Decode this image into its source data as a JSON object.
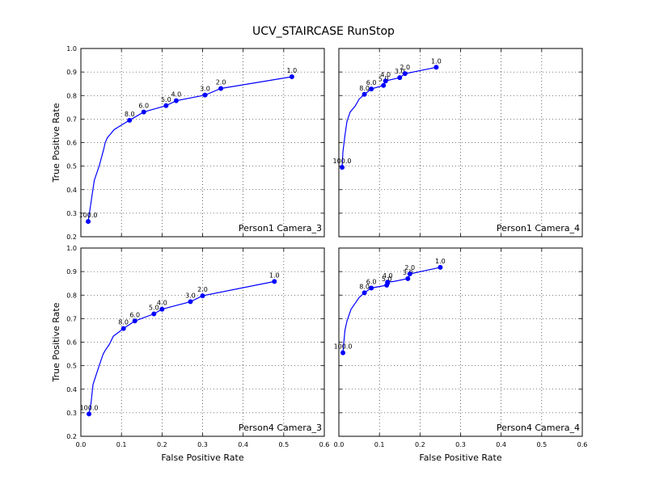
{
  "figure": {
    "title": "UCV_STAIRCASE RunStop",
    "xlabel": "False Positive Rate",
    "ylabel": "True Positive Rate",
    "line_color": "#0000ff"
  },
  "chart_data": [
    {
      "type": "line",
      "subplot": "Person1 Camera_3",
      "xlim": [
        0.0,
        0.6
      ],
      "ylim": [
        0.2,
        1.0
      ],
      "xticks": [
        "0.0",
        "0.1",
        "0.2",
        "0.3",
        "0.4",
        "0.5",
        "0.6"
      ],
      "yticks": [
        "0.2",
        "0.3",
        "0.4",
        "0.5",
        "0.6",
        "0.7",
        "0.8",
        "0.9",
        "1.0"
      ],
      "show_xtick_labels": false,
      "show_ytick_labels": true,
      "show_ylabel": true,
      "show_xlabel": false,
      "grid": true,
      "curve": [
        [
          0.018,
          0.265
        ],
        [
          0.022,
          0.31
        ],
        [
          0.028,
          0.38
        ],
        [
          0.033,
          0.44
        ],
        [
          0.045,
          0.5
        ],
        [
          0.056,
          0.57
        ],
        [
          0.06,
          0.6
        ],
        [
          0.065,
          0.62
        ],
        [
          0.082,
          0.655
        ],
        [
          0.1,
          0.675
        ],
        [
          0.12,
          0.695
        ],
        [
          0.155,
          0.73
        ],
        [
          0.21,
          0.757
        ],
        [
          0.235,
          0.778
        ],
        [
          0.306,
          0.802
        ],
        [
          0.345,
          0.83
        ],
        [
          0.52,
          0.88
        ]
      ],
      "points": [
        {
          "x": 0.018,
          "y": 0.265,
          "label": "100.0"
        },
        {
          "x": 0.12,
          "y": 0.695,
          "label": "8.0"
        },
        {
          "x": 0.155,
          "y": 0.73,
          "label": "6.0"
        },
        {
          "x": 0.21,
          "y": 0.757,
          "label": "5.0"
        },
        {
          "x": 0.235,
          "y": 0.778,
          "label": "4.0"
        },
        {
          "x": 0.306,
          "y": 0.802,
          "label": "3.0"
        },
        {
          "x": 0.345,
          "y": 0.83,
          "label": "2.0"
        },
        {
          "x": 0.52,
          "y": 0.88,
          "label": "1.0"
        }
      ]
    },
    {
      "type": "line",
      "subplot": "Person1 Camera_4",
      "xlim": [
        0.0,
        0.6
      ],
      "ylim": [
        0.2,
        1.0
      ],
      "xticks": [
        "0.0",
        "0.1",
        "0.2",
        "0.3",
        "0.4",
        "0.5",
        "0.6"
      ],
      "yticks": [
        "0.2",
        "0.3",
        "0.4",
        "0.5",
        "0.6",
        "0.7",
        "0.8",
        "0.9",
        "1.0"
      ],
      "show_xtick_labels": false,
      "show_ytick_labels": false,
      "show_ylabel": false,
      "show_xlabel": false,
      "grid": true,
      "curve": [
        [
          0.008,
          0.495
        ],
        [
          0.01,
          0.56
        ],
        [
          0.015,
          0.63
        ],
        [
          0.02,
          0.69
        ],
        [
          0.028,
          0.73
        ],
        [
          0.04,
          0.755
        ],
        [
          0.05,
          0.785
        ],
        [
          0.063,
          0.805
        ],
        [
          0.08,
          0.828
        ],
        [
          0.11,
          0.843
        ],
        [
          0.115,
          0.862
        ],
        [
          0.15,
          0.876
        ],
        [
          0.163,
          0.893
        ],
        [
          0.24,
          0.92
        ]
      ],
      "points": [
        {
          "x": 0.008,
          "y": 0.495,
          "label": "100.0"
        },
        {
          "x": 0.063,
          "y": 0.805,
          "label": "8.0"
        },
        {
          "x": 0.08,
          "y": 0.828,
          "label": "6.0"
        },
        {
          "x": 0.11,
          "y": 0.843,
          "label": "5.0"
        },
        {
          "x": 0.115,
          "y": 0.862,
          "label": "4.0"
        },
        {
          "x": 0.15,
          "y": 0.876,
          "label": "3.0"
        },
        {
          "x": 0.163,
          "y": 0.893,
          "label": "2.0"
        },
        {
          "x": 0.24,
          "y": 0.92,
          "label": "1.0"
        }
      ]
    },
    {
      "type": "line",
      "subplot": "Person4 Camera_3",
      "xlim": [
        0.0,
        0.6
      ],
      "ylim": [
        0.2,
        1.0
      ],
      "xticks": [
        "0.0",
        "0.1",
        "0.2",
        "0.3",
        "0.4",
        "0.5",
        "0.6"
      ],
      "yticks": [
        "0.2",
        "0.3",
        "0.4",
        "0.5",
        "0.6",
        "0.7",
        "0.8",
        "0.9",
        "1.0"
      ],
      "show_xtick_labels": true,
      "show_ytick_labels": true,
      "show_ylabel": true,
      "show_xlabel": true,
      "grid": true,
      "curve": [
        [
          0.02,
          0.295
        ],
        [
          0.025,
          0.34
        ],
        [
          0.03,
          0.42
        ],
        [
          0.045,
          0.5
        ],
        [
          0.055,
          0.55
        ],
        [
          0.06,
          0.565
        ],
        [
          0.07,
          0.59
        ],
        [
          0.08,
          0.625
        ],
        [
          0.105,
          0.658
        ],
        [
          0.133,
          0.69
        ],
        [
          0.18,
          0.72
        ],
        [
          0.2,
          0.74
        ],
        [
          0.27,
          0.772
        ],
        [
          0.3,
          0.797
        ],
        [
          0.477,
          0.858
        ]
      ],
      "points": [
        {
          "x": 0.02,
          "y": 0.295,
          "label": "100.0"
        },
        {
          "x": 0.105,
          "y": 0.658,
          "label": "8.0"
        },
        {
          "x": 0.133,
          "y": 0.69,
          "label": "6.0"
        },
        {
          "x": 0.18,
          "y": 0.72,
          "label": "5.0"
        },
        {
          "x": 0.2,
          "y": 0.74,
          "label": "4.0"
        },
        {
          "x": 0.27,
          "y": 0.772,
          "label": "3.0"
        },
        {
          "x": 0.3,
          "y": 0.797,
          "label": "2.0"
        },
        {
          "x": 0.477,
          "y": 0.858,
          "label": "1.0"
        }
      ]
    },
    {
      "type": "line",
      "subplot": "Person4 Camera_4",
      "xlim": [
        0.0,
        0.6
      ],
      "ylim": [
        0.2,
        1.0
      ],
      "xticks": [
        "0.0",
        "0.1",
        "0.2",
        "0.3",
        "0.4",
        "0.5",
        "0.6"
      ],
      "yticks": [
        "0.2",
        "0.3",
        "0.4",
        "0.5",
        "0.6",
        "0.7",
        "0.8",
        "0.9",
        "1.0"
      ],
      "show_xtick_labels": true,
      "show_ytick_labels": false,
      "show_ylabel": false,
      "show_xlabel": true,
      "grid": true,
      "curve": [
        [
          0.01,
          0.555
        ],
        [
          0.015,
          0.65
        ],
        [
          0.02,
          0.69
        ],
        [
          0.03,
          0.74
        ],
        [
          0.05,
          0.79
        ],
        [
          0.063,
          0.81
        ],
        [
          0.08,
          0.83
        ],
        [
          0.118,
          0.842
        ],
        [
          0.125,
          0.848
        ],
        [
          0.12,
          0.855
        ],
        [
          0.135,
          0.858
        ],
        [
          0.17,
          0.87
        ],
        [
          0.175,
          0.89
        ],
        [
          0.25,
          0.918
        ]
      ],
      "points": [
        {
          "x": 0.01,
          "y": 0.555,
          "label": "100.0"
        },
        {
          "x": 0.063,
          "y": 0.81,
          "label": "8.0"
        },
        {
          "x": 0.08,
          "y": 0.83,
          "label": "6.0"
        },
        {
          "x": 0.118,
          "y": 0.842,
          "label": "5.0"
        },
        {
          "x": 0.12,
          "y": 0.855,
          "label": "4.0"
        },
        {
          "x": 0.17,
          "y": 0.87,
          "label": "3.0"
        },
        {
          "x": 0.175,
          "y": 0.89,
          "label": "2.0"
        },
        {
          "x": 0.25,
          "y": 0.918,
          "label": "1.0"
        }
      ]
    }
  ]
}
